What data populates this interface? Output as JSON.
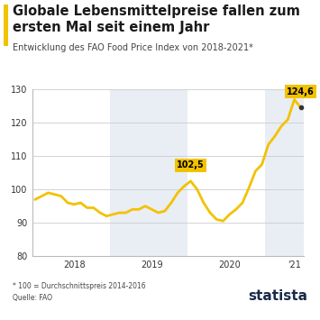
{
  "chart_data": {
    "type": "line",
    "title": "Globale Lebensmittelpreise fallen zum ersten Mal seit einem Jahr",
    "subtitle": "Entwicklung des FAO Food Price Index von 2018-2021*",
    "footnote": "* 100 = Durchschnittspreis 2014-2016",
    "source": "Quelle: FAO",
    "brand": "statista",
    "categories": [
      null,
      null,
      null,
      null,
      null,
      null,
      "2018",
      null,
      null,
      null,
      null,
      null,
      null,
      null,
      null,
      null,
      null,
      null,
      "2019",
      null,
      null,
      null,
      null,
      null,
      null,
      null,
      null,
      null,
      null,
      null,
      "2020",
      null,
      null,
      null,
      null,
      null,
      null,
      null,
      null,
      null,
      "'21",
      null
    ],
    "values": [
      97,
      98,
      99,
      98.5,
      98,
      96,
      95.5,
      96,
      94.5,
      94.5,
      93,
      92,
      92.5,
      93,
      93,
      94,
      94,
      95,
      94,
      93,
      93.5,
      96,
      99,
      101,
      102.5,
      100,
      96,
      93,
      91,
      90.5,
      92.5,
      94,
      96,
      100.5,
      105.5,
      107.5,
      113.5,
      116,
      119,
      121,
      127,
      124.6
    ],
    "value_labels": [
      null,
      null,
      null,
      null,
      null,
      null,
      null,
      null,
      null,
      null,
      null,
      null,
      null,
      null,
      null,
      null,
      null,
      null,
      null,
      null,
      null,
      null,
      null,
      null,
      "102,5",
      null,
      null,
      null,
      null,
      null,
      null,
      null,
      null,
      null,
      null,
      null,
      null,
      null,
      null,
      null,
      null,
      "124,6"
    ],
    "data_labels": true,
    "color": "#f2c200",
    "ylim": [
      80,
      130
    ],
    "yticks": [
      80,
      90,
      100,
      110,
      120,
      130
    ],
    "grid": true
  }
}
